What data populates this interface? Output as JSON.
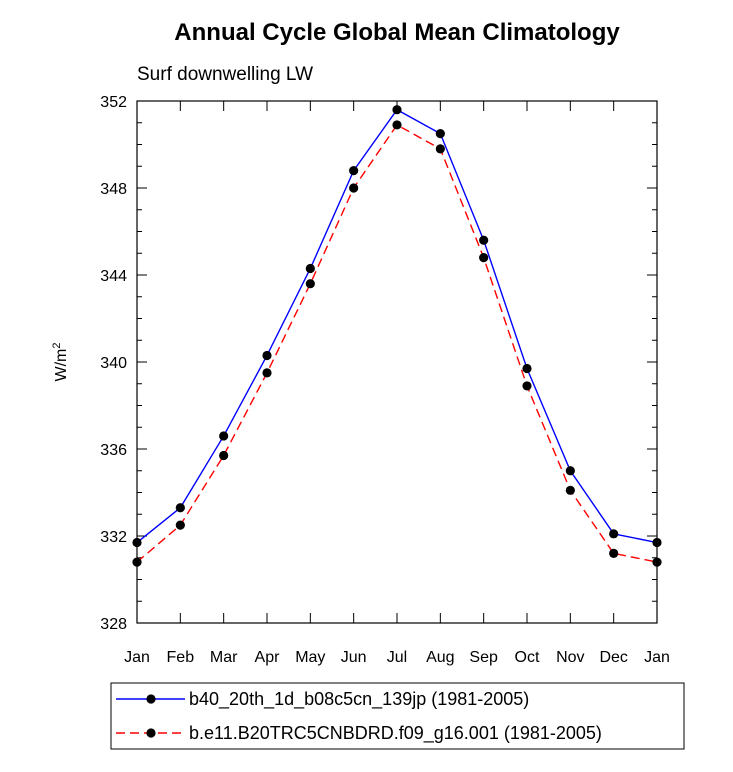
{
  "chart_data": {
    "type": "line",
    "title": "Annual Cycle Global Mean Climatology",
    "subtitle": "Surf downwelling LW",
    "ylabel": "W/m",
    "ylabel_superscript": "2",
    "xlabel": "",
    "categories": [
      "Jan",
      "Feb",
      "Mar",
      "Apr",
      "May",
      "Jun",
      "Jul",
      "Aug",
      "Sep",
      "Oct",
      "Nov",
      "Dec",
      "Jan"
    ],
    "ylim": [
      328,
      352
    ],
    "yticks": [
      328,
      332,
      336,
      340,
      344,
      348,
      352
    ],
    "ytick_labels": [
      "328",
      "332",
      "336",
      "340",
      "344",
      "348",
      "352"
    ],
    "grid": false,
    "legend_position": "bottom",
    "series": [
      {
        "name": "b40_20th_1d_b08c5cn_139jp (1981-2005)",
        "color": "#0000ff",
        "dash": "solid",
        "values": [
          331.7,
          333.3,
          336.6,
          340.3,
          344.3,
          348.8,
          351.6,
          350.5,
          345.6,
          339.7,
          335.0,
          332.1,
          331.7
        ]
      },
      {
        "name": "b.e11.B20TRC5CNBDRD.f09_g16.001 (1981-2005)",
        "color": "#ff0000",
        "dash": "dashed",
        "values": [
          330.8,
          332.5,
          335.7,
          339.5,
          343.6,
          348.0,
          350.9,
          349.8,
          344.8,
          338.9,
          334.1,
          331.2,
          330.8
        ]
      }
    ]
  }
}
